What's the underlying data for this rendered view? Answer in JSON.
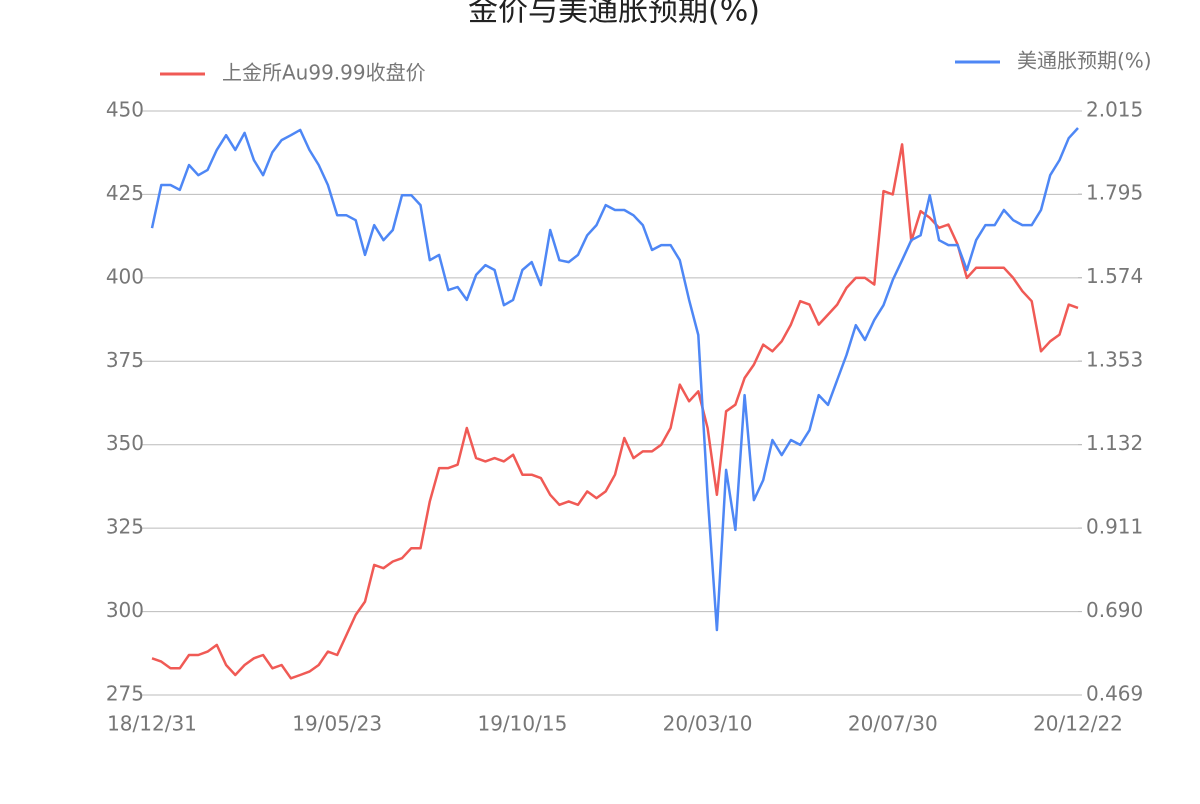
{
  "chart_data": {
    "type": "line",
    "title": "金价与美通胀预期(%)",
    "categories": [
      "18/12/31",
      null,
      null,
      null,
      null,
      null,
      null,
      null,
      null,
      null,
      null,
      null,
      null,
      null,
      null,
      null,
      null,
      null,
      null,
      null,
      "19/05/23",
      null,
      null,
      null,
      null,
      null,
      null,
      null,
      null,
      null,
      null,
      null,
      null,
      null,
      null,
      null,
      null,
      null,
      null,
      null,
      "19/10/15",
      null,
      null,
      null,
      null,
      null,
      null,
      null,
      null,
      null,
      null,
      null,
      null,
      null,
      null,
      null,
      null,
      null,
      null,
      null,
      "20/03/10",
      null,
      null,
      null,
      null,
      null,
      null,
      null,
      null,
      null,
      null,
      null,
      null,
      null,
      null,
      null,
      null,
      null,
      null,
      null,
      "20/07/30",
      null,
      null,
      null,
      null,
      null,
      null,
      null,
      null,
      null,
      null,
      null,
      null,
      null,
      null,
      null,
      null,
      null,
      null,
      null,
      "20/12/22"
    ],
    "series": [
      {
        "name": "上金所Au99.99收盘价",
        "color": "#f05a55",
        "axis": "y",
        "values": [
          286,
          285,
          283,
          283,
          287,
          287,
          288,
          290,
          284,
          281,
          284,
          286,
          287,
          283,
          284,
          280,
          281,
          282,
          284,
          288,
          287,
          293,
          299,
          303,
          314,
          313,
          315,
          316,
          319,
          319,
          333,
          343,
          343,
          344,
          355,
          346,
          345,
          346,
          345,
          347,
          341,
          341,
          340,
          335,
          332,
          333,
          332,
          336,
          334,
          336,
          341,
          352,
          346,
          348,
          348,
          350,
          355,
          368,
          363,
          366,
          355,
          335,
          360,
          362,
          370,
          374,
          380,
          378,
          381,
          386,
          393,
          392,
          386,
          389,
          392,
          397,
          400,
          400,
          398,
          426,
          425,
          440,
          411,
          420,
          418,
          415,
          416,
          410,
          400,
          403,
          403,
          403,
          403,
          400,
          396,
          393,
          378,
          381,
          383,
          392,
          391
        ]
      },
      {
        "name": "美通胀预期(%)",
        "color": "#4e87f5",
        "axis": "y2",
        "values": [
          1.705,
          1.819,
          1.819,
          1.806,
          1.872,
          1.845,
          1.859,
          1.912,
          1.951,
          1.912,
          1.957,
          1.885,
          1.845,
          1.906,
          1.938,
          1.951,
          1.965,
          1.912,
          1.872,
          1.819,
          1.739,
          1.739,
          1.726,
          1.634,
          1.713,
          1.673,
          1.7,
          1.792,
          1.792,
          1.766,
          1.62,
          1.634,
          1.541,
          1.549,
          1.515,
          1.581,
          1.607,
          1.594,
          1.501,
          1.515,
          1.594,
          1.615,
          1.554,
          1.7,
          1.62,
          1.615,
          1.634,
          1.686,
          1.713,
          1.766,
          1.753,
          1.753,
          1.739,
          1.713,
          1.647,
          1.66,
          1.66,
          1.62,
          1.515,
          1.422,
          0.998,
          0.641,
          1.065,
          0.906,
          1.263,
          0.985,
          1.038,
          1.144,
          1.104,
          1.144,
          1.131,
          1.17,
          1.263,
          1.237,
          1.303,
          1.369,
          1.448,
          1.409,
          1.462,
          1.501,
          1.568,
          1.62,
          1.673,
          1.686,
          1.792,
          1.673,
          1.66,
          1.66,
          1.594,
          1.673,
          1.713,
          1.713,
          1.753,
          1.726,
          1.713,
          1.713,
          1.753,
          1.845,
          1.885,
          1.943,
          1.97
        ]
      }
    ],
    "ylim": [
      275,
      450
    ],
    "yticks": [
      275,
      300,
      325,
      350,
      375,
      400,
      425,
      450
    ],
    "y2lim": [
      0.469,
      2.015
    ],
    "y2ticks": [
      0.469,
      {
        "value": 0.69,
        "label": "0.690"
      },
      0.911,
      1.132,
      1.353,
      1.574,
      1.795,
      2.015
    ],
    "grid": true
  }
}
